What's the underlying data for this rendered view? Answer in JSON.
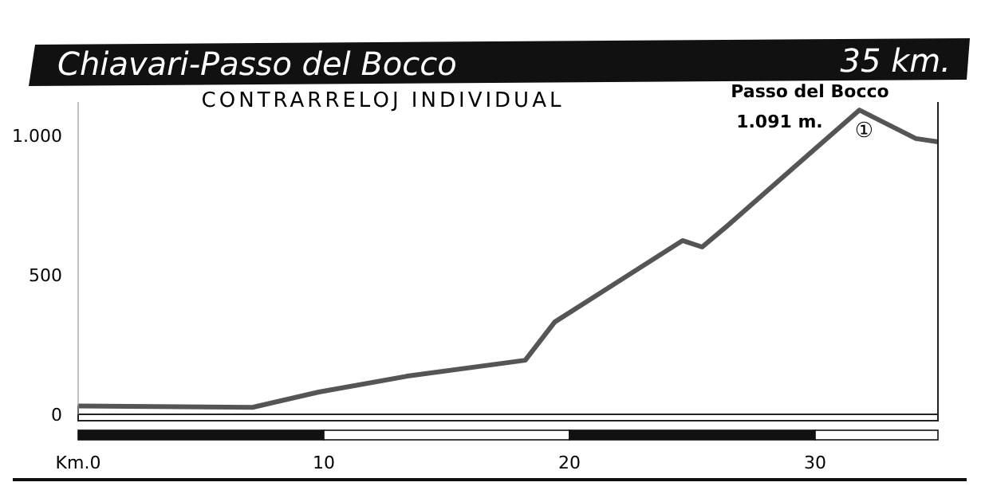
{
  "chart_data": {
    "type": "area",
    "title": "Chiavari-Passo del Bocco",
    "subtitle": "35 km.",
    "x": [
      0,
      7.1,
      9.8,
      13.4,
      18.2,
      19.4,
      24.6,
      25.4,
      26.4,
      31.8,
      34.1,
      35
    ],
    "series": [
      {
        "color": "#555555",
        "values": [
          30,
          25,
          80,
          137,
          194,
          331,
          623,
          600,
          674,
          1091,
          989,
          977
        ]
      }
    ],
    "xlim": [
      0,
      35
    ],
    "xticks": [
      {
        "value": 0,
        "label": "Km.0"
      },
      10,
      20,
      30
    ],
    "ylim": [
      0,
      1120
    ],
    "yticks": [
      0,
      500,
      {
        "value": 1000,
        "label": "1.000"
      }
    ],
    "grid": false,
    "annotations": [
      "CONTRARRELOJ INDIVIDUAL",
      {
        "text": "Passo del Bocco\n1.091 m.",
        "x": 31.8,
        "y": 1091
      },
      {
        "text": "①",
        "x": 31.8,
        "y": 1091
      }
    ]
  }
}
